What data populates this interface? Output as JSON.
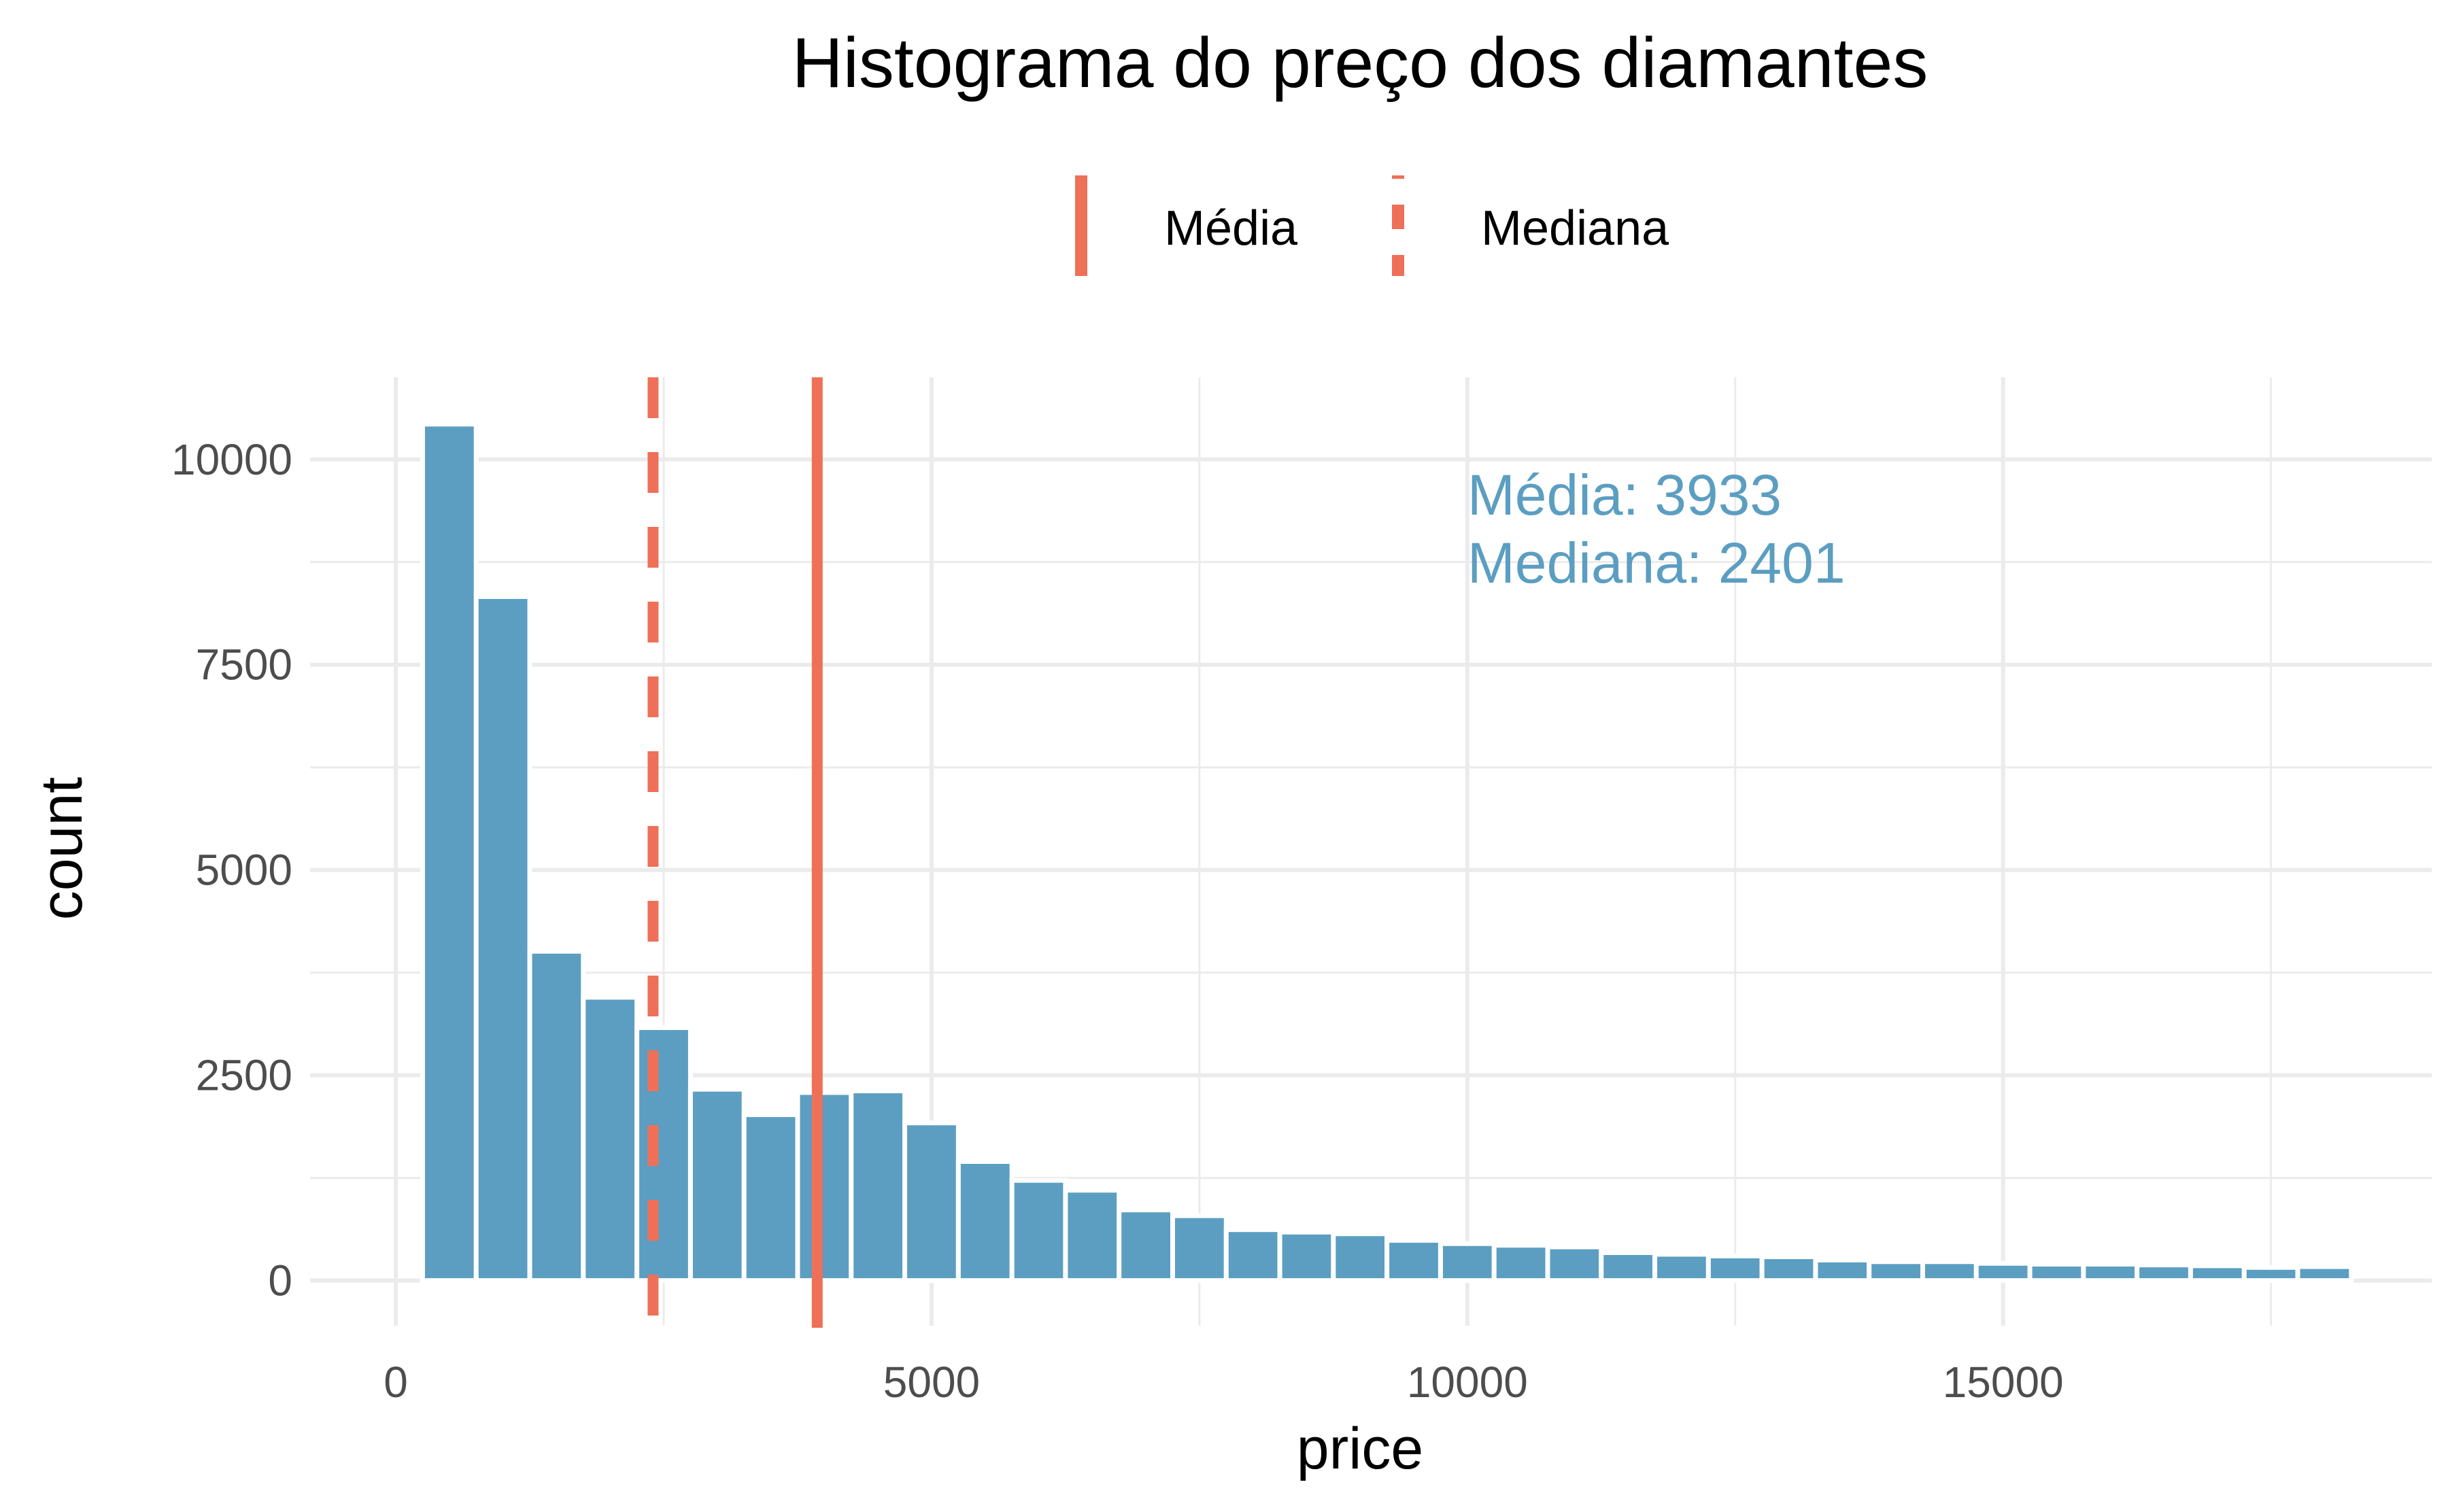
{
  "chart_data": {
    "type": "bar",
    "title": "Histograma do preço dos diamantes",
    "xlabel": "price",
    "ylabel": "count",
    "x_range": [
      -800,
      19000
    ],
    "y_range": [
      -550,
      11000
    ],
    "x_ticks": [
      0,
      5000,
      10000,
      15000
    ],
    "x_tick_labels": [
      "0",
      "5000",
      "10000",
      "15000"
    ],
    "y_ticks": [
      0,
      2500,
      5000,
      7500,
      10000
    ],
    "y_tick_labels": [
      "0",
      "2500",
      "5000",
      "7500",
      "10000"
    ],
    "grid": true,
    "bin_width": 500,
    "bin_centers": [
      500,
      1000,
      1500,
      2000,
      2500,
      3000,
      3500,
      4000,
      4500,
      5000,
      5500,
      6000,
      6500,
      7000,
      7500,
      8000,
      8500,
      9000,
      9500,
      10000,
      10500,
      11000,
      11500,
      12000,
      12500,
      13000,
      13500,
      14000,
      14500,
      15000,
      15500,
      16000,
      16500,
      17000,
      17500,
      18000
    ],
    "values": [
      10430,
      8330,
      4010,
      3450,
      3080,
      2330,
      2020,
      2290,
      2310,
      1920,
      1450,
      1220,
      1100,
      860,
      790,
      620,
      590,
      570,
      490,
      450,
      430,
      410,
      340,
      320,
      300,
      290,
      250,
      230,
      230,
      210,
      200,
      200,
      190,
      180,
      160,
      170
    ],
    "bar_color": "#5b9ec1",
    "reference_lines": [
      {
        "name": "Média",
        "x": 3933,
        "style": "solid",
        "color": "#ef7058"
      },
      {
        "name": "Mediana",
        "x": 2401,
        "style": "dashed",
        "color": "#ef7058"
      }
    ],
    "legend": {
      "position": "top",
      "entries": [
        {
          "label": "Média",
          "style": "solid"
        },
        {
          "label": "Mediana",
          "style": "dashed"
        }
      ]
    },
    "annotation": {
      "x": 10000,
      "y": 9600,
      "lines": [
        "Média: 3933",
        "Mediana: 2401"
      ],
      "color": "#5b9ec1"
    }
  }
}
